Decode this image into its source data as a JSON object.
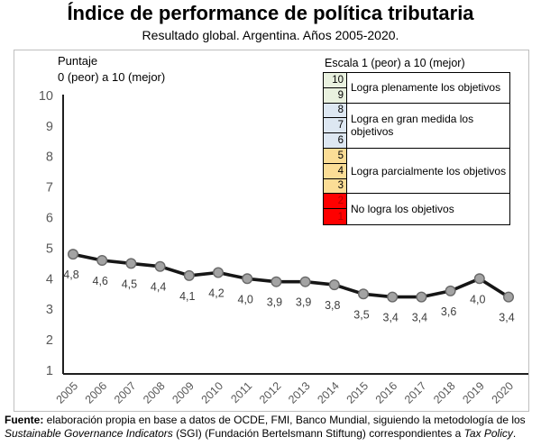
{
  "header": {
    "title": "Índice de performance de política tributaria",
    "subtitle": "Resultado global. Argentina. Años 2005-2020."
  },
  "chart": {
    "y_note_line1": "Puntaje",
    "y_note_line2": "0 (peor) a 10 (mejor)"
  },
  "legend": {
    "header": "Escala 1 (peor) a 10 (mejor)",
    "groups": [
      {
        "numbers": [
          10,
          9
        ],
        "color": "#E9F1DF",
        "text_color": "#000000",
        "label": "Logra plenamente los objetivos"
      },
      {
        "numbers": [
          8,
          7,
          6
        ],
        "color": "#DDE7F2",
        "text_color": "#000000",
        "label": "Logra en gran medida los objetivos"
      },
      {
        "numbers": [
          5,
          4,
          3
        ],
        "color": "#FBDD96",
        "text_color": "#000000",
        "label": "Logra parcialmente los objetivos"
      },
      {
        "numbers": [
          2,
          1
        ],
        "color": "#FE0000",
        "text_color": "#B00000",
        "label": "No logra los objetivos"
      }
    ]
  },
  "chart_data": {
    "type": "line",
    "title": "Índice de performance de política tributaria",
    "subtitle": "Resultado global. Argentina. Años 2005-2020.",
    "categories": [
      "2005",
      "2006",
      "2007",
      "2008",
      "2009",
      "2010",
      "2011",
      "2012",
      "2013",
      "2014",
      "2015",
      "2016",
      "2017",
      "2018",
      "2019",
      "2020"
    ],
    "values": [
      4.8,
      4.6,
      4.5,
      4.4,
      4.1,
      4.2,
      4.0,
      3.9,
      3.9,
      3.8,
      3.5,
      3.4,
      3.4,
      3.6,
      4.0,
      3.4
    ],
    "point_labels": [
      "4,8",
      "4,6",
      "4,5",
      "4,4",
      "4,1",
      "4,2",
      "4,0",
      "3,9",
      "3,9",
      "3,8",
      "3,5",
      "3,4",
      "3,4",
      "3,6",
      "4,0",
      "3,4"
    ],
    "ylabel": "Puntaje 0 (peor) a 10 (mejor)",
    "xlabel": "",
    "ylim": [
      1,
      10
    ],
    "yticks": [
      1,
      2,
      3,
      4,
      5,
      6,
      7,
      8,
      9,
      10
    ],
    "grid": false,
    "legend_position": "top-right",
    "style": {
      "line_color": "#161616",
      "marker_fill": "#A3A3A3",
      "marker_stroke": "#696969",
      "axis_color": "#1f1f1f",
      "tick_color": "#595959",
      "label_color": "#3d3d3d"
    }
  },
  "footer": {
    "lines": [
      [
        {
          "t": "Fuente:",
          "b": true
        },
        {
          "t": " elaboración propia en base a datos de OCDE, FMI, Banco Mundial, siguiendo la metodología de los"
        }
      ],
      [
        {
          "t": "Sustainable Governance Indicators",
          "i": true
        },
        {
          "t": " (SGI) (Fundación Bertelsmann Stiftung) correspondientes a "
        },
        {
          "t": "Tax Policy",
          "i": true
        },
        {
          "t": "."
        }
      ]
    ]
  }
}
